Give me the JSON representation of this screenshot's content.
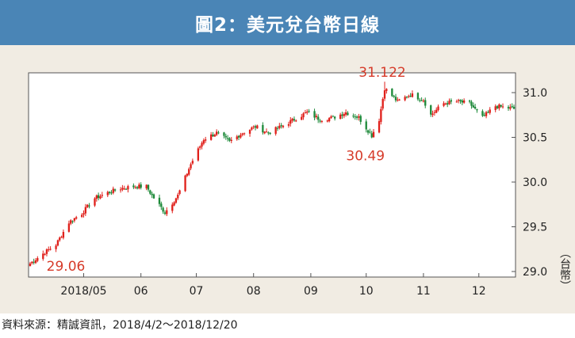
{
  "title": "圖2：美元兌台幣日線",
  "source": "資料來源：精誠資訊，2018/4/2～2018/12/20",
  "colors": {
    "background": "#f1ece3",
    "title_bar": "#4a85b6",
    "up_candle": "#e0201b",
    "down_candle": "#1e8a3a",
    "annotation": "#d63b2a"
  },
  "chart_data": {
    "type": "candlestick",
    "y_unit": "台幣",
    "ylim": [
      29.0,
      31.15
    ],
    "y_ticks": [
      {
        "value": 29.0,
        "label": "29.0"
      },
      {
        "value": 29.5,
        "label": "29.5"
      },
      {
        "value": 30.0,
        "label": "30.0"
      },
      {
        "value": 30.5,
        "label": "30.5"
      },
      {
        "value": 31.0,
        "label": "31.0"
      }
    ],
    "x_ticks": [
      {
        "date": "2018-05-01",
        "label": "2018/05"
      },
      {
        "date": "2018-06-01",
        "label": "06"
      },
      {
        "date": "2018-07-01",
        "label": "07"
      },
      {
        "date": "2018-08-01",
        "label": "08"
      },
      {
        "date": "2018-09-01",
        "label": "09"
      },
      {
        "date": "2018-10-01",
        "label": "10"
      },
      {
        "date": "2018-11-01",
        "label": "11"
      },
      {
        "date": "2018-12-01",
        "label": "12"
      }
    ],
    "x_range": [
      "2018-04-02",
      "2018-12-20"
    ],
    "grid": false,
    "annotations": [
      {
        "label": "29.06",
        "date": "2018-04-02",
        "value": 29.06
      },
      {
        "label": "31.122",
        "date": "2018-10-11",
        "value": 31.122
      },
      {
        "label": "30.49",
        "date": "2018-10-04",
        "value": 30.49
      }
    ],
    "close_anchors": [
      [
        "2018-04-02",
        29.09
      ],
      [
        "2018-04-09",
        29.2
      ],
      [
        "2018-04-16",
        29.3
      ],
      [
        "2018-04-23",
        29.55
      ],
      [
        "2018-04-30",
        29.65
      ],
      [
        "2018-05-07",
        29.82
      ],
      [
        "2018-05-14",
        29.88
      ],
      [
        "2018-05-21",
        29.93
      ],
      [
        "2018-05-28",
        29.95
      ],
      [
        "2018-06-04",
        29.95
      ],
      [
        "2018-06-07",
        29.85
      ],
      [
        "2018-06-14",
        29.66
      ],
      [
        "2018-06-21",
        29.85
      ],
      [
        "2018-06-28",
        30.2
      ],
      [
        "2018-07-05",
        30.48
      ],
      [
        "2018-07-12",
        30.55
      ],
      [
        "2018-07-19",
        30.45
      ],
      [
        "2018-07-26",
        30.55
      ],
      [
        "2018-08-02",
        30.62
      ],
      [
        "2018-08-09",
        30.55
      ],
      [
        "2018-08-16",
        30.62
      ],
      [
        "2018-08-23",
        30.7
      ],
      [
        "2018-08-30",
        30.78
      ],
      [
        "2018-09-06",
        30.7
      ],
      [
        "2018-09-13",
        30.72
      ],
      [
        "2018-09-20",
        30.78
      ],
      [
        "2018-09-27",
        30.72
      ],
      [
        "2018-10-04",
        30.52
      ],
      [
        "2018-10-08",
        30.7
      ],
      [
        "2018-10-11",
        31.05
      ],
      [
        "2018-10-18",
        30.9
      ],
      [
        "2018-10-25",
        30.98
      ],
      [
        "2018-11-01",
        30.92
      ],
      [
        "2018-11-05",
        30.75
      ],
      [
        "2018-11-12",
        30.88
      ],
      [
        "2018-11-19",
        30.9
      ],
      [
        "2018-11-26",
        30.88
      ],
      [
        "2018-12-03",
        30.72
      ],
      [
        "2018-12-10",
        30.85
      ],
      [
        "2018-12-20",
        30.82
      ]
    ]
  }
}
